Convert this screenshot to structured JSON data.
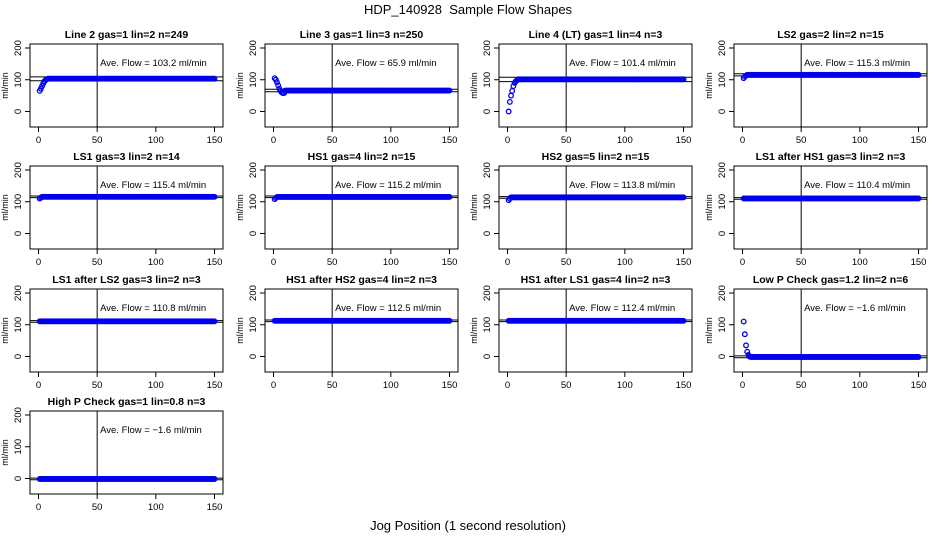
{
  "title": "HDP_140928  Sample Flow Shapes",
  "xlabel": "Jog Position (1 second resolution)",
  "colors": {
    "points": "#0000ee",
    "lines": "#000000"
  },
  "chart_data": [
    {
      "type": "scatter",
      "title": "Line 2 gas=1 lin=2 n=249",
      "flow_label": "Ave. Flow =  103.2  ml/min",
      "ylabel": "ml/min",
      "xlim": [
        0,
        150
      ],
      "ylim": [
        -30,
        200
      ],
      "xticks": [
        0,
        50,
        100,
        150
      ],
      "yticks": [
        0,
        100,
        200
      ],
      "vline": 50,
      "hlines": [
        97,
        109
      ],
      "level": 103.2,
      "start": [
        65,
        72,
        80,
        88,
        95,
        99,
        101
      ],
      "x_max": 150
    },
    {
      "type": "scatter",
      "title": "Line 3 gas=1 lin=3 n=250",
      "flow_label": "Ave. Flow =  65.9  ml/min",
      "ylabel": "ml/min",
      "xlim": [
        0,
        150
      ],
      "ylim": [
        -30,
        200
      ],
      "xticks": [
        0,
        50,
        100,
        150
      ],
      "yticks": [
        0,
        100,
        200
      ],
      "vline": 50,
      "hlines": [
        62,
        70
      ],
      "level": 65.9,
      "start": [
        105,
        100,
        92,
        82,
        72,
        65,
        60,
        58,
        58
      ],
      "x_max": 150
    },
    {
      "type": "scatter",
      "title": "Line 4 (LT) gas=1 lin=4 n=3",
      "flow_label": "Ave. Flow =  101.4  ml/min",
      "ylabel": "ml/min",
      "xlim": [
        0,
        150
      ],
      "ylim": [
        -30,
        200
      ],
      "xticks": [
        0,
        50,
        100,
        150
      ],
      "yticks": [
        0,
        100,
        200
      ],
      "vline": 50,
      "hlines": [
        94,
        108
      ],
      "level": 101.4,
      "start": [
        0,
        30,
        50,
        65,
        80,
        90,
        95,
        98
      ],
      "x_max": 150
    },
    {
      "type": "scatter",
      "title": "LS2 gas=2 lin=2 n=15",
      "flow_label": "Ave. Flow =  115.3  ml/min",
      "ylabel": "ml/min",
      "xlim": [
        0,
        150
      ],
      "ylim": [
        -30,
        200
      ],
      "xticks": [
        0,
        50,
        100,
        150
      ],
      "yticks": [
        0,
        100,
        200
      ],
      "vline": 50,
      "hlines": [
        112,
        119
      ],
      "level": 115.3,
      "start": [
        105,
        110,
        113
      ],
      "x_max": 150
    },
    {
      "type": "scatter",
      "title": "LS1 gas=3 lin=2 n=14",
      "flow_label": "Ave. Flow =  115.4  ml/min",
      "ylabel": "ml/min",
      "xlim": [
        0,
        150
      ],
      "ylim": [
        -30,
        200
      ],
      "xticks": [
        0,
        50,
        100,
        150
      ],
      "yticks": [
        0,
        100,
        200
      ],
      "vline": 50,
      "hlines": [
        113,
        118
      ],
      "level": 115.4,
      "start": [
        110,
        113
      ],
      "x_max": 150
    },
    {
      "type": "scatter",
      "title": "HS1 gas=4 lin=2 n=15",
      "flow_label": "Ave. Flow =  115.2  ml/min",
      "ylabel": "ml/min",
      "xlim": [
        0,
        150
      ],
      "ylim": [
        -30,
        200
      ],
      "xticks": [
        0,
        50,
        100,
        150
      ],
      "yticks": [
        0,
        100,
        200
      ],
      "vline": 50,
      "hlines": [
        113,
        118
      ],
      "level": 115.2,
      "start": [
        108,
        112
      ],
      "x_max": 150
    },
    {
      "type": "scatter",
      "title": "HS2 gas=5 lin=2 n=15",
      "flow_label": "Ave. Flow =  113.8  ml/min",
      "ylabel": "ml/min",
      "xlim": [
        0,
        150
      ],
      "ylim": [
        -30,
        200
      ],
      "xticks": [
        0,
        50,
        100,
        150
      ],
      "yticks": [
        0,
        100,
        200
      ],
      "vline": 50,
      "hlines": [
        111,
        116
      ],
      "level": 113.8,
      "start": [
        105,
        110
      ],
      "x_max": 150
    },
    {
      "type": "scatter",
      "title": "LS1 after HS1 gas=3 lin=2 n=3",
      "flow_label": "Ave. Flow =  110.4  ml/min",
      "ylabel": "ml/min",
      "xlim": [
        0,
        150
      ],
      "ylim": [
        -30,
        200
      ],
      "xticks": [
        0,
        50,
        100,
        150
      ],
      "yticks": [
        0,
        100,
        200
      ],
      "vline": 50,
      "hlines": [
        108,
        113
      ],
      "level": 110.4,
      "start": [],
      "x_max": 150
    },
    {
      "type": "scatter",
      "title": "LS1 after LS2 gas=3 lin=2 n=3",
      "flow_label": "Ave. Flow =  110.8  ml/min",
      "ylabel": "ml/min",
      "xlim": [
        0,
        150
      ],
      "ylim": [
        -30,
        200
      ],
      "xticks": [
        0,
        50,
        100,
        150
      ],
      "yticks": [
        0,
        100,
        200
      ],
      "vline": 50,
      "hlines": [
        108,
        113
      ],
      "level": 110.8,
      "start": [],
      "x_max": 150
    },
    {
      "type": "scatter",
      "title": "HS1 after HS2 gas=4 lin=2 n=3",
      "flow_label": "Ave. Flow =  112.5  ml/min",
      "ylabel": "ml/min",
      "xlim": [
        0,
        150
      ],
      "ylim": [
        -30,
        200
      ],
      "xticks": [
        0,
        50,
        100,
        150
      ],
      "yticks": [
        0,
        100,
        200
      ],
      "vline": 50,
      "hlines": [
        110,
        115
      ],
      "level": 112.5,
      "start": [],
      "x_max": 150
    },
    {
      "type": "scatter",
      "title": "HS1 after LS1 gas=4 lin=2 n=3",
      "flow_label": "Ave. Flow =  112.4  ml/min",
      "ylabel": "ml/min",
      "xlim": [
        0,
        150
      ],
      "ylim": [
        -30,
        200
      ],
      "xticks": [
        0,
        50,
        100,
        150
      ],
      "yticks": [
        0,
        100,
        200
      ],
      "vline": 50,
      "hlines": [
        110,
        115
      ],
      "level": 112.4,
      "start": [],
      "x_max": 150
    },
    {
      "type": "scatter",
      "title": "Low P Check gas=1.2 lin=2 n=6",
      "flow_label": "Ave. Flow =  −1.6  ml/min",
      "ylabel": "ml/min",
      "xlim": [
        0,
        150
      ],
      "ylim": [
        -30,
        200
      ],
      "xticks": [
        0,
        50,
        100,
        150
      ],
      "yticks": [
        0,
        100,
        200
      ],
      "vline": 50,
      "hlines": [
        -4,
        2
      ],
      "level": -1.6,
      "start": [
        110,
        70,
        35,
        15,
        5,
        0
      ],
      "x_max": 150
    },
    {
      "type": "scatter",
      "title": "High P Check gas=1 lin=0.8 n=3",
      "flow_label": "Ave. Flow =  −1.6  ml/min",
      "ylabel": "ml/min",
      "xlim": [
        0,
        150
      ],
      "ylim": [
        -30,
        200
      ],
      "xticks": [
        0,
        50,
        100,
        150
      ],
      "yticks": [
        0,
        100,
        200
      ],
      "vline": 50,
      "hlines": [
        -4,
        1
      ],
      "level": -1.6,
      "start": [],
      "x_max": 150
    }
  ]
}
